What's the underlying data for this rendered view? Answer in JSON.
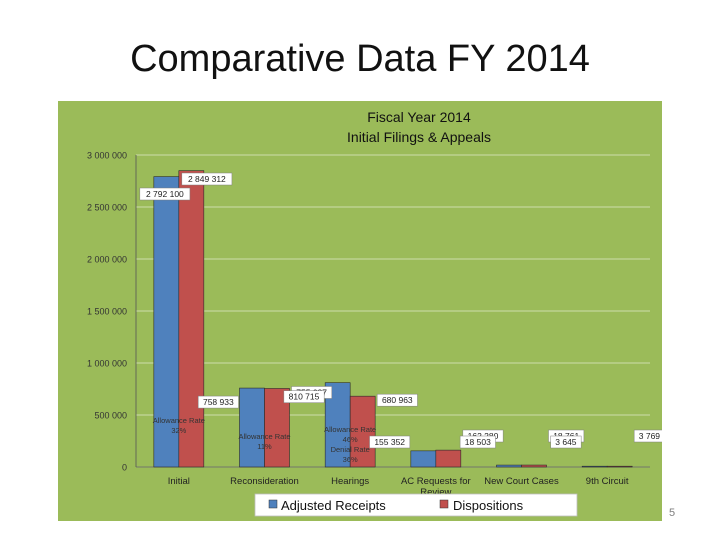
{
  "slide": {
    "title": "Comparative Data FY 2014",
    "page_number": "5"
  },
  "colors": {
    "panel": "#9bbb59",
    "receipts": "#4f81bd",
    "dispositions": "#c0504d"
  },
  "chart_data": {
    "type": "bar",
    "title": "Fiscal Year 2014",
    "subtitle": "Initial Filings & Appeals",
    "categories": [
      "Initial",
      "Reconsideration",
      "Hearings",
      "AC Requests for Review",
      "New Court Cases",
      "9th Circuit"
    ],
    "series": [
      {
        "name": "Adjusted Receipts",
        "values": [
          2792100,
          758933,
          810715,
          155352,
          18503,
          3645
        ],
        "labels": [
          "2 792 100",
          "758 933",
          "810 715",
          "155 352",
          "18 503",
          "3 645"
        ]
      },
      {
        "name": "Dispositions",
        "values": [
          2849312,
          755087,
          680963,
          162280,
          18761,
          3769
        ],
        "labels": [
          "2 849 312",
          "755 087",
          "680 963",
          "162 280",
          "18 761",
          "3 769"
        ]
      }
    ],
    "yticks": [
      0,
      500000,
      1000000,
      1500000,
      2000000,
      2500000,
      3000000
    ],
    "ytick_labels": [
      "0",
      "500 000",
      "1 000 000",
      "1 500 000",
      "2 000 000",
      "2 500 000",
      "3 000 000"
    ],
    "ylim": [
      0,
      3000000
    ],
    "legend_position": "bottom",
    "annotations": [
      {
        "category": "Initial",
        "lines": [
          "Allowance Rate",
          "32%"
        ]
      },
      {
        "category": "Reconsideration",
        "lines": [
          "Allowance Rate",
          "11%"
        ]
      },
      {
        "category": "Hearings",
        "lines": [
          "Allowance Rate",
          "46%",
          "Denial Rate",
          "36%"
        ]
      }
    ]
  }
}
